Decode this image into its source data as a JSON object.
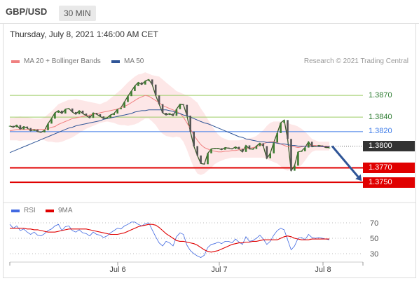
{
  "header": {
    "symbol": "GBP/USD",
    "timeframe": "30 MIN"
  },
  "datetime": "Thursday, July 8, 2021 1:46:00 AM CET",
  "legend": {
    "ma_bb": {
      "label": "MA 20 + Bollinger Bands",
      "color": "#f08080"
    },
    "ma50": {
      "label": "MA 50",
      "color": "#2f5597"
    },
    "rsi": {
      "label": "RSI",
      "color": "#4169e1"
    },
    "ma9": {
      "label": "9MA",
      "color": "#e00000"
    }
  },
  "copyright": "Research © 2021 Trading Central",
  "chart_data": {
    "type": "line",
    "x_labels": [
      "Jul 6",
      "Jul 7",
      "Jul 8"
    ],
    "price_range": [
      1.3725,
      1.3905
    ],
    "current_price": 1.38,
    "levels": [
      {
        "value": 1.387,
        "label": "1.3870",
        "type": "resistance",
        "color": "#9ccc65",
        "label_color": "#2e7d32"
      },
      {
        "value": 1.384,
        "label": "1.3840",
        "type": "resistance",
        "color": "#9ccc65",
        "label_color": "#2e7d32"
      },
      {
        "value": 1.382,
        "label": "1.3820",
        "type": "pivot",
        "color": "#3d7be8",
        "label_color": "#3d7be8"
      },
      {
        "value": 1.38,
        "label": "1.3800",
        "type": "last",
        "color": "#333333",
        "label_color": "#333333"
      },
      {
        "value": 1.377,
        "label": "1.3770",
        "type": "support",
        "color": "#e00000",
        "label_color": "#e00000"
      },
      {
        "value": 1.375,
        "label": "1.3750",
        "type": "support",
        "color": "#e00000",
        "label_color": "#e00000"
      }
    ],
    "price_series": [
      {
        "name": "price",
        "values": [
          1.3828,
          1.3826,
          1.3829,
          1.3823,
          1.3827,
          1.3825,
          1.3821,
          1.3823,
          1.382,
          1.3819,
          1.3822,
          1.3831,
          1.3838,
          1.3846,
          1.3849,
          1.3845,
          1.3851,
          1.3852,
          1.3847,
          1.3844,
          1.3849,
          1.3845,
          1.3842,
          1.3839,
          1.3846,
          1.3844,
          1.3841,
          1.3838,
          1.3839,
          1.3843,
          1.3845,
          1.3851,
          1.3853,
          1.3861,
          1.3869,
          1.3876,
          1.3883,
          1.3888,
          1.3885,
          1.389,
          1.3892,
          1.3885,
          1.387,
          1.3858,
          1.3846,
          1.3843,
          1.3845,
          1.3842,
          1.3851,
          1.3858,
          1.3857,
          1.3842,
          1.382,
          1.38,
          1.3787,
          1.3776,
          1.3775,
          1.379,
          1.3796,
          1.3797,
          1.3797,
          1.3795,
          1.3798,
          1.3797,
          1.3796,
          1.3799,
          1.3796,
          1.3792,
          1.3801,
          1.3796,
          1.3796,
          1.38,
          1.3804,
          1.38,
          1.3783,
          1.379,
          1.3805,
          1.3818,
          1.3832,
          1.3836,
          1.381,
          1.3766,
          1.3773,
          1.3792,
          1.3793,
          1.3798,
          1.3806,
          1.3799,
          1.38,
          1.3801,
          1.38,
          1.3798,
          1.3798
        ]
      },
      {
        "name": "ma20",
        "values": [
          1.3821,
          1.3822,
          1.3823,
          1.3823,
          1.3823,
          1.3823,
          1.3823,
          1.3823,
          1.3823,
          1.3823,
          1.3823,
          1.3824,
          1.3826,
          1.3827,
          1.383,
          1.3832,
          1.3834,
          1.3836,
          1.3838,
          1.3839,
          1.384,
          1.3841,
          1.3842,
          1.3843,
          1.3844,
          1.3845,
          1.3846,
          1.3847,
          1.3848,
          1.3849,
          1.385,
          1.3851,
          1.3853,
          1.3855,
          1.3857,
          1.386,
          1.3863,
          1.3866,
          1.3868,
          1.387,
          1.3869,
          1.3866,
          1.3863,
          1.386,
          1.3856,
          1.3854,
          1.3852,
          1.385,
          1.3848,
          1.3845,
          1.384,
          1.3832,
          1.3824,
          1.3815,
          1.3808,
          1.3802,
          1.3798,
          1.3796,
          1.3794,
          1.3793,
          1.3792,
          1.3792,
          1.3793,
          1.3793,
          1.3794,
          1.3794,
          1.3795,
          1.3796,
          1.3797,
          1.3797,
          1.3798,
          1.3799,
          1.3801,
          1.3803,
          1.3805,
          1.3806,
          1.3806,
          1.3805,
          1.3803,
          1.3801,
          1.3799,
          1.3799,
          1.3799,
          1.3798,
          1.3799,
          1.38,
          1.3801,
          1.3801,
          1.3801,
          1.38,
          1.38,
          1.38,
          1.38
        ]
      },
      {
        "name": "ma50",
        "values": [
          1.3791,
          1.3793,
          1.3795,
          1.3797,
          1.3799,
          1.3801,
          1.3803,
          1.3805,
          1.3807,
          1.3809,
          1.3811,
          1.3813,
          1.3815,
          1.3817,
          1.3819,
          1.3821,
          1.3823,
          1.3825,
          1.3826,
          1.3828,
          1.3829,
          1.383,
          1.3831,
          1.3832,
          1.3833,
          1.3834,
          1.3835,
          1.3837,
          1.3838,
          1.3839,
          1.384,
          1.3841,
          1.3842,
          1.3843,
          1.3844,
          1.3845,
          1.3847,
          1.3848,
          1.3849,
          1.3849,
          1.385,
          1.385,
          1.385,
          1.385,
          1.385,
          1.385,
          1.3849,
          1.3848,
          1.3846,
          1.3845,
          1.3843,
          1.3842,
          1.384,
          1.3838,
          1.3836,
          1.3834,
          1.3832,
          1.3831,
          1.3829,
          1.3827,
          1.3825,
          1.3823,
          1.3821,
          1.3819,
          1.3817,
          1.3815,
          1.3813,
          1.3812,
          1.381,
          1.3809,
          1.3808,
          1.3807,
          1.3806,
          1.3806,
          1.3805,
          1.3805,
          1.3805,
          1.3804,
          1.3803,
          1.3803,
          1.3802,
          1.3801,
          1.3801,
          1.38,
          1.38,
          1.38,
          1.38,
          1.38,
          1.38,
          1.3799,
          1.3799,
          1.3799,
          1.3799
        ]
      }
    ],
    "bollinger": {
      "upper": [
        1.3839,
        1.3839,
        1.384,
        1.3841,
        1.384,
        1.384,
        1.3839,
        1.3838,
        1.3838,
        1.3838,
        1.384,
        1.3844,
        1.3848,
        1.3853,
        1.3858,
        1.386,
        1.3862,
        1.3864,
        1.3864,
        1.3865,
        1.3864,
        1.3863,
        1.3862,
        1.3861,
        1.386,
        1.3859,
        1.3858,
        1.386,
        1.3862,
        1.3866,
        1.387,
        1.3874,
        1.3878,
        1.3883,
        1.3888,
        1.3892,
        1.3896,
        1.3899,
        1.39,
        1.3902,
        1.39,
        1.3898,
        1.3897,
        1.3896,
        1.3892,
        1.3888,
        1.3884,
        1.388,
        1.3876,
        1.3874,
        1.3872,
        1.387,
        1.3868,
        1.3864,
        1.386,
        1.3852,
        1.3845,
        1.3837,
        1.383,
        1.3822,
        1.3816,
        1.3812,
        1.381,
        1.3808,
        1.3808,
        1.3808,
        1.3808,
        1.3809,
        1.381,
        1.3811,
        1.3812,
        1.3814,
        1.3818,
        1.3822,
        1.3828,
        1.3832,
        1.3834,
        1.3834,
        1.3834,
        1.3834,
        1.3832,
        1.383,
        1.3829,
        1.3827,
        1.3824,
        1.382,
        1.3815,
        1.381,
        1.3808,
        1.3806,
        1.3806,
        1.3806,
        1.3806
      ],
      "lower": [
        1.3808,
        1.3808,
        1.3808,
        1.3807,
        1.3808,
        1.3808,
        1.3808,
        1.3808,
        1.3809,
        1.3809,
        1.3808,
        1.3806,
        1.3806,
        1.3805,
        1.3805,
        1.3806,
        1.3808,
        1.381,
        1.3812,
        1.3815,
        1.3818,
        1.3821,
        1.3824,
        1.3826,
        1.3828,
        1.383,
        1.3832,
        1.3833,
        1.3834,
        1.3833,
        1.3832,
        1.383,
        1.3829,
        1.3829,
        1.3828,
        1.3829,
        1.383,
        1.3832,
        1.3835,
        1.3838,
        1.3838,
        1.3834,
        1.3829,
        1.3822,
        1.3817,
        1.3814,
        1.3813,
        1.3812,
        1.3813,
        1.3812,
        1.3806,
        1.3795,
        1.3782,
        1.377,
        1.3762,
        1.376,
        1.3762,
        1.3766,
        1.377,
        1.3775,
        1.3778,
        1.378,
        1.3782,
        1.3783,
        1.3784,
        1.3784,
        1.3784,
        1.3784,
        1.3784,
        1.3784,
        1.3784,
        1.3784,
        1.3784,
        1.3784,
        1.3782,
        1.378,
        1.3778,
        1.3776,
        1.3772,
        1.3768,
        1.3766,
        1.3768,
        1.3769,
        1.377,
        1.3774,
        1.378,
        1.3787,
        1.3792,
        1.3794,
        1.3794,
        1.3794,
        1.3794,
        1.3794
      ]
    },
    "forecast": {
      "from": 1.38,
      "to": 1.375
    },
    "rsi": {
      "ticks": [
        {
          "value": 70,
          "label": "70"
        },
        {
          "value": 50,
          "label": "50"
        },
        {
          "value": 30,
          "label": "30"
        }
      ],
      "range": [
        20,
        80
      ],
      "series": [
        {
          "name": "RSI",
          "values": [
            68,
            63,
            66,
            60,
            62,
            58,
            55,
            58,
            54,
            53,
            56,
            60,
            62,
            66,
            68,
            60,
            65,
            66,
            60,
            58,
            61,
            57,
            56,
            53,
            58,
            55,
            54,
            51,
            53,
            57,
            60,
            63,
            62,
            66,
            68,
            71,
            71,
            68,
            66,
            69,
            70,
            61,
            52,
            44,
            40,
            46,
            44,
            40,
            52,
            57,
            55,
            41,
            34,
            30,
            27,
            25,
            28,
            38,
            42,
            43,
            45,
            43,
            46,
            46,
            44,
            49,
            45,
            42,
            52,
            46,
            47,
            50,
            54,
            49,
            42,
            46,
            54,
            60,
            63,
            61,
            48,
            35,
            40,
            50,
            51,
            48,
            55,
            51,
            50,
            51,
            50,
            49,
            48
          ]
        },
        {
          "name": "9MA",
          "values": [
            63,
            63,
            63,
            63,
            63,
            62,
            62,
            61,
            61,
            60,
            59,
            58,
            58,
            58,
            59,
            60,
            61,
            62,
            62,
            62,
            62,
            62,
            62,
            61,
            60,
            59,
            58,
            57,
            56,
            55,
            55,
            55,
            56,
            57,
            59,
            61,
            63,
            65,
            66,
            67,
            68,
            68,
            67,
            64,
            60,
            56,
            53,
            50,
            47,
            46,
            46,
            45,
            44,
            43,
            41,
            38,
            35,
            33,
            32,
            33,
            34,
            36,
            38,
            40,
            42,
            43,
            44,
            44,
            45,
            45,
            46,
            46,
            47,
            48,
            48,
            48,
            48,
            48,
            50,
            52,
            53,
            52,
            50,
            49,
            48,
            48,
            48,
            49,
            49,
            49,
            49,
            49,
            49
          ]
        }
      ]
    }
  }
}
